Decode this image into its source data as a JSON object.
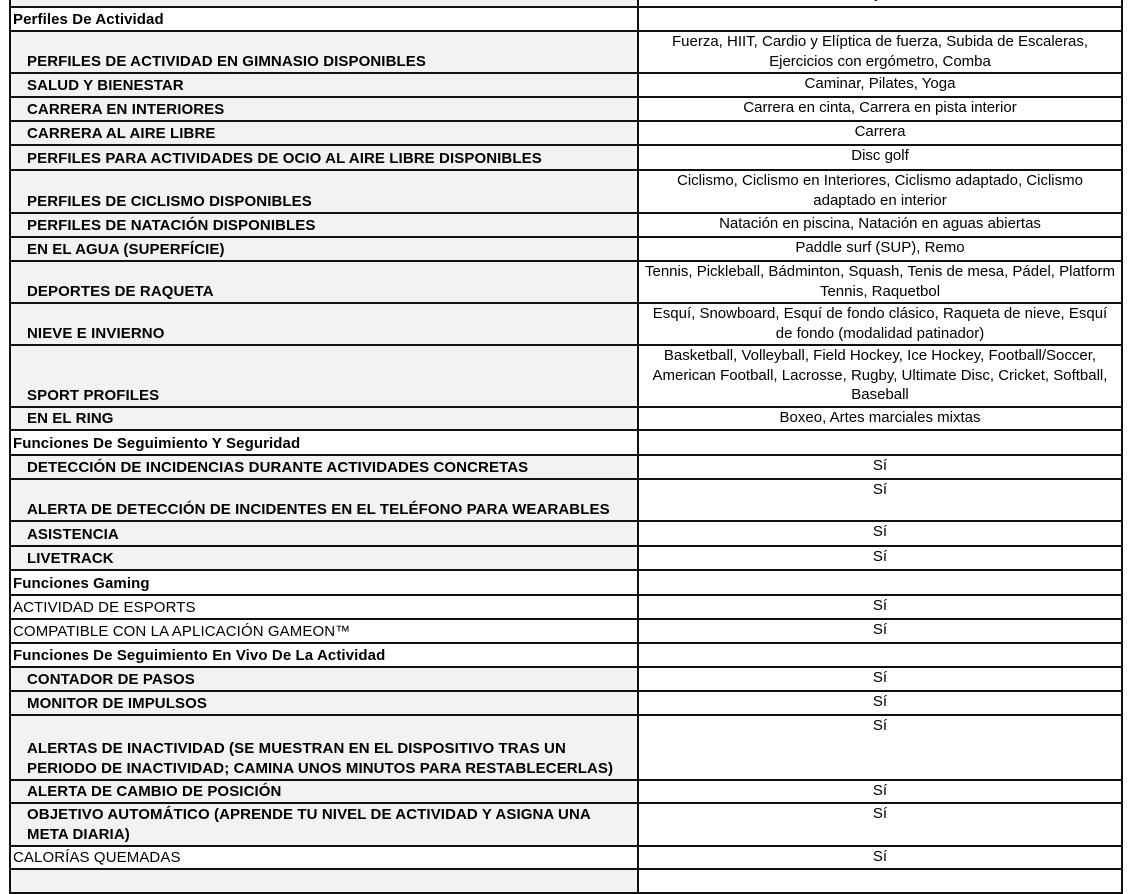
{
  "rows": [
    {
      "type": "item",
      "label": "",
      "value": "iPhone y Android"
    },
    {
      "type": "section",
      "label": "Perfiles De Actividad",
      "value": ""
    },
    {
      "type": "item",
      "label": "PERFILES DE ACTIVIDAD EN GIMNASIO DISPONIBLES",
      "value": "Fuerza, HIIT, Cardio y Elíptica de fuerza, Subida de Escaleras, Ejercicios con ergómetro, Comba"
    },
    {
      "type": "item",
      "label": "SALUD Y BIENESTAR",
      "value": "Caminar, Pilates, Yoga"
    },
    {
      "type": "item",
      "label": "CARRERA EN INTERIORES",
      "value": "Carrera en cinta, Carrera en pista interior"
    },
    {
      "type": "item",
      "label": "CARRERA AL AIRE LIBRE",
      "value": "Carrera"
    },
    {
      "type": "item",
      "label": "PERFILES PARA ACTIVIDADES DE OCIO AL AIRE LIBRE DISPONIBLES",
      "value": "Disc golf"
    },
    {
      "type": "item",
      "label": "PERFILES DE CICLISMO DISPONIBLES",
      "value": "Ciclismo, Ciclismo en Interiores, Ciclismo adaptado, Ciclismo adaptado en interior"
    },
    {
      "type": "item",
      "label": "PERFILES DE NATACIÓN DISPONIBLES",
      "value": "Natación en piscina, Natación en aguas abiertas"
    },
    {
      "type": "item",
      "label": "EN EL AGUA (SUPERFÍCIE)",
      "value": "Paddle surf (SUP), Remo"
    },
    {
      "type": "item",
      "label": "DEPORTES DE RAQUETA",
      "value": "Tennis, Pickleball, Bádminton, Squash, Tenis de mesa, Pádel, Platform Tennis, Raquetbol"
    },
    {
      "type": "item",
      "label": "NIEVE E INVIERNO",
      "value": "Esquí, Snowboard, Esquí de fondo clásico, Raqueta de nieve, Esquí de fondo (modalidad patinador)"
    },
    {
      "type": "item",
      "label": "SPORT PROFILES",
      "value": "Basketball, Volleyball, Field Hockey, Ice Hockey, Football/Soccer, American Football, Lacrosse, Rugby, Ultimate Disc, Cricket, Softball, Baseball"
    },
    {
      "type": "item",
      "label": "EN EL RING",
      "value": "Boxeo, Artes marciales mixtas"
    },
    {
      "type": "section",
      "label": "Funciones De Seguimiento Y Seguridad",
      "value": ""
    },
    {
      "type": "item",
      "label": "DETECCIÓN DE INCIDENCIAS DURANTE ACTIVIDADES CONCRETAS",
      "value": "Sí"
    },
    {
      "type": "item",
      "label": "ALERTA DE DETECCIÓN DE INCIDENTES EN EL TELÉFONO PARA WEARABLES",
      "value": "Sí"
    },
    {
      "type": "item",
      "label": "ASISTENCIA",
      "value": "Sí"
    },
    {
      "type": "item",
      "label": "LIVETRACK",
      "value": "Sí"
    },
    {
      "type": "section",
      "label": "Funciones Gaming",
      "value": ""
    },
    {
      "type": "plain",
      "label": "ACTIVIDAD DE ESPORTS",
      "value": "Sí"
    },
    {
      "type": "plain",
      "label": "COMPATIBLE CON LA APLICACIÓN GAMEON™",
      "value": "Sí"
    },
    {
      "type": "section",
      "label": "Funciones De Seguimiento En Vivo De La Actividad",
      "value": ""
    },
    {
      "type": "item",
      "label": "CONTADOR DE PASOS",
      "value": "Sí"
    },
    {
      "type": "item",
      "label": "MONITOR DE IMPULSOS",
      "value": "Sí"
    },
    {
      "type": "item",
      "label": "ALERTAS DE INACTIVIDAD (SE MUESTRAN EN EL DISPOSITIVO TRAS UN PERIODO DE INACTIVIDAD; CAMINA UNOS MINUTOS PARA RESTABLECERLAS)",
      "value": "Sí"
    },
    {
      "type": "item",
      "label": "ALERTA DE CAMBIO DE POSICIÓN",
      "value": "Sí"
    },
    {
      "type": "item",
      "label": "OBJETIVO AUTOMÁTICO (APRENDE TU NIVEL DE ACTIVIDAD Y ASIGNA UNA META DIARIA)",
      "value": "Sí"
    },
    {
      "type": "plain",
      "label": "CALORÍAS QUEMADAS",
      "value": "Sí"
    },
    {
      "type": "item",
      "label": "",
      "value": ""
    }
  ]
}
